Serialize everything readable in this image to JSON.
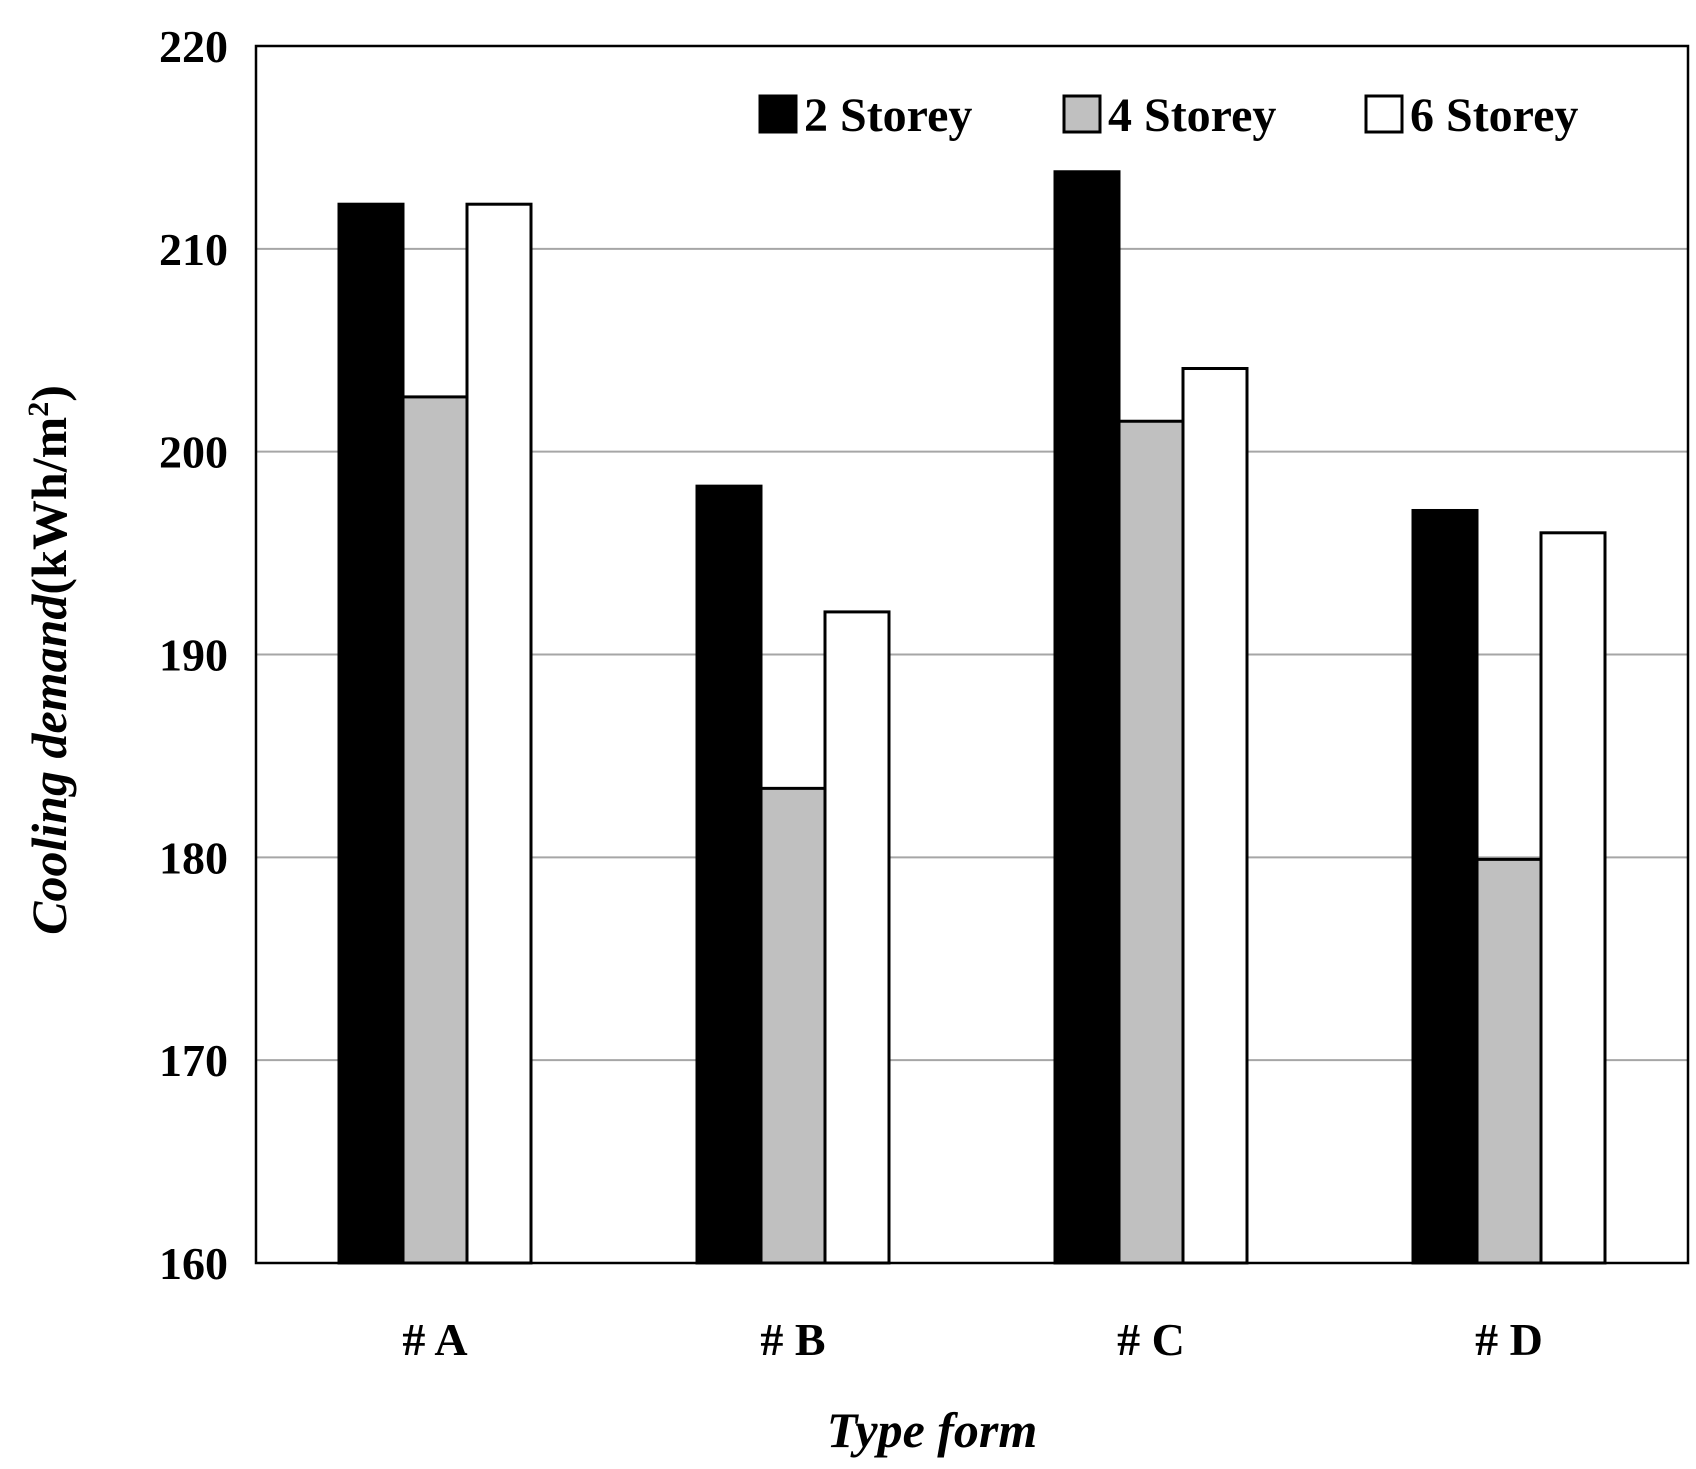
{
  "chart_data": {
    "type": "bar",
    "title": "",
    "xlabel": "Type form",
    "ylabel": {
      "main": "Cooling demand",
      "unit_prefix": "(kWh/m",
      "unit_sup": "2",
      "unit_suffix": ")"
    },
    "categories": [
      "# A",
      "# B",
      "# C",
      "# D"
    ],
    "series": [
      {
        "name": "2 Storey",
        "color": "#000000",
        "values": [
          212.2,
          198.3,
          213.8,
          197.1
        ]
      },
      {
        "name": "4 Storey",
        "color": "#c0c0c0",
        "values": [
          202.7,
          183.4,
          201.5,
          179.9
        ]
      },
      {
        "name": "6 Storey",
        "color": "#ffffff",
        "values": [
          212.2,
          192.1,
          204.1,
          196.0
        ]
      }
    ],
    "ylim": [
      160,
      220
    ],
    "yticks": [
      160,
      170,
      180,
      190,
      200,
      210,
      220
    ],
    "grid": true,
    "legend_position": "top-right"
  }
}
